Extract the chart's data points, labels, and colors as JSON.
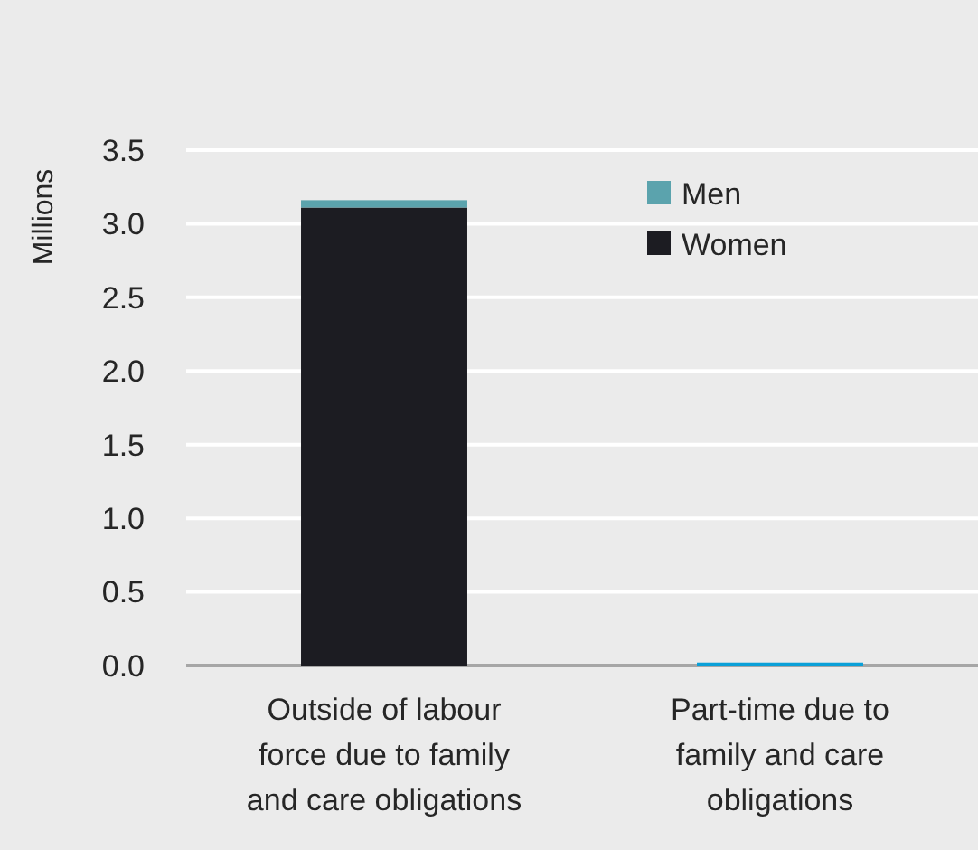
{
  "chart_data": {
    "type": "bar",
    "stacked": true,
    "ylabel": "Millions",
    "categories": [
      "Outside of labour force due to family and care obligations",
      "Part-time due to family and care obligations"
    ],
    "series": [
      {
        "name": "Women",
        "color": "#1c1c22",
        "values": [
          3.11,
          0
        ]
      },
      {
        "name": "Men",
        "color": "#5ba3ad",
        "colors": [
          "#5ba3ad",
          "#0aa0d8"
        ],
        "values": [
          0.05,
          0.02
        ]
      }
    ],
    "ylim": [
      0,
      3.5
    ],
    "yticks": [
      {
        "value": 0,
        "label": "0.0"
      },
      {
        "value": 0.5,
        "label": "0.5"
      },
      {
        "value": 1,
        "label": "1.0"
      },
      {
        "value": 1.5,
        "label": "1.5"
      },
      {
        "value": 2,
        "label": "2.0"
      },
      {
        "value": 2.5,
        "label": "2.5"
      },
      {
        "value": 3,
        "label": "3.0"
      },
      {
        "value": 3.5,
        "label": "3.5"
      }
    ],
    "grid": "y",
    "legend": "top right"
  }
}
